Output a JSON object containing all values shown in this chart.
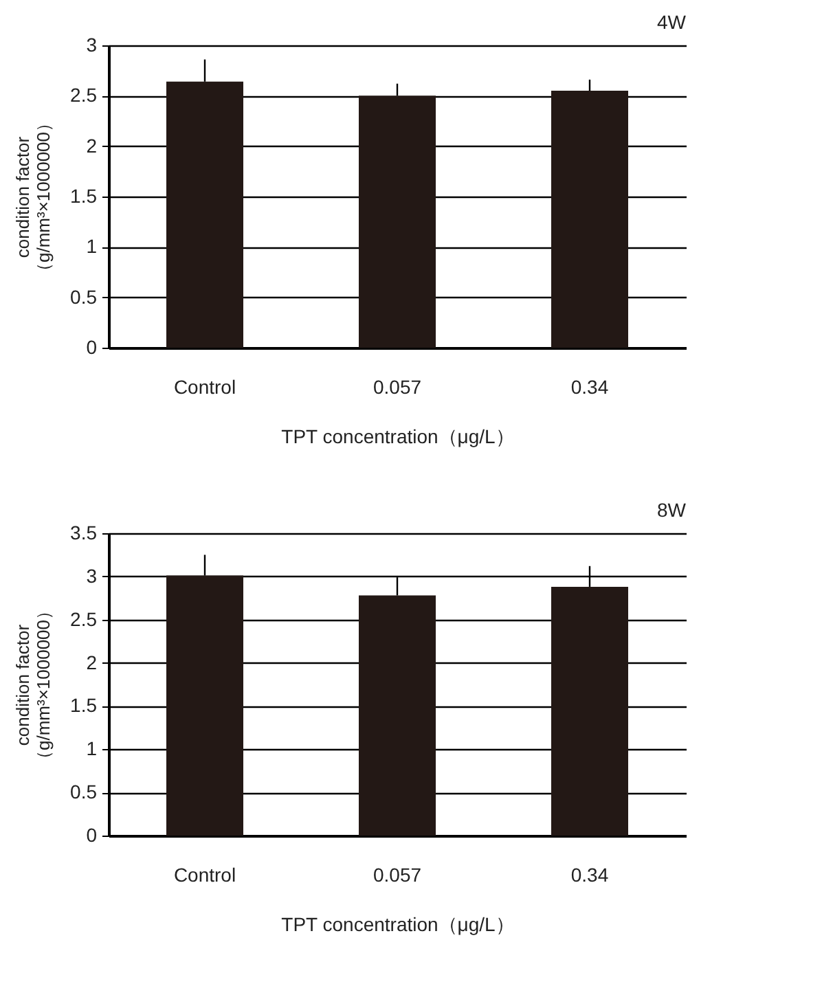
{
  "chart_data": [
    {
      "type": "bar",
      "title": "4W",
      "categories": [
        "Control",
        "0.057",
        "0.34"
      ],
      "values": [
        2.64,
        2.5,
        2.55
      ],
      "errors": [
        [
          2.64,
          2.86
        ],
        [
          2.5,
          2.62
        ],
        [
          2.55,
          2.66
        ]
      ],
      "color": "#231815",
      "ylim": [
        0,
        3
      ],
      "yticks": [
        0,
        0.5,
        1,
        1.5,
        2,
        2.5,
        3
      ],
      "grid": "y",
      "xlabel": "TPT concentration（μg/L）",
      "ylabel": "condition factor\n（g/mm³×1000000）"
    },
    {
      "type": "bar",
      "title": "8W",
      "categories": [
        "Control",
        "0.057",
        "0.34"
      ],
      "values": [
        3.01,
        2.78,
        2.88
      ],
      "errors": [
        [
          3.01,
          3.25
        ],
        [
          2.78,
          2.99
        ],
        [
          2.88,
          3.12
        ]
      ],
      "color": "#231815",
      "ylim": [
        0,
        3.5
      ],
      "yticks": [
        0,
        0.5,
        1,
        1.5,
        2,
        2.5,
        3,
        3.5
      ],
      "grid": "y",
      "xlabel": "TPT concentration（μg/L）",
      "ylabel": "condition factor\n（g/mm³×1000000）"
    }
  ]
}
